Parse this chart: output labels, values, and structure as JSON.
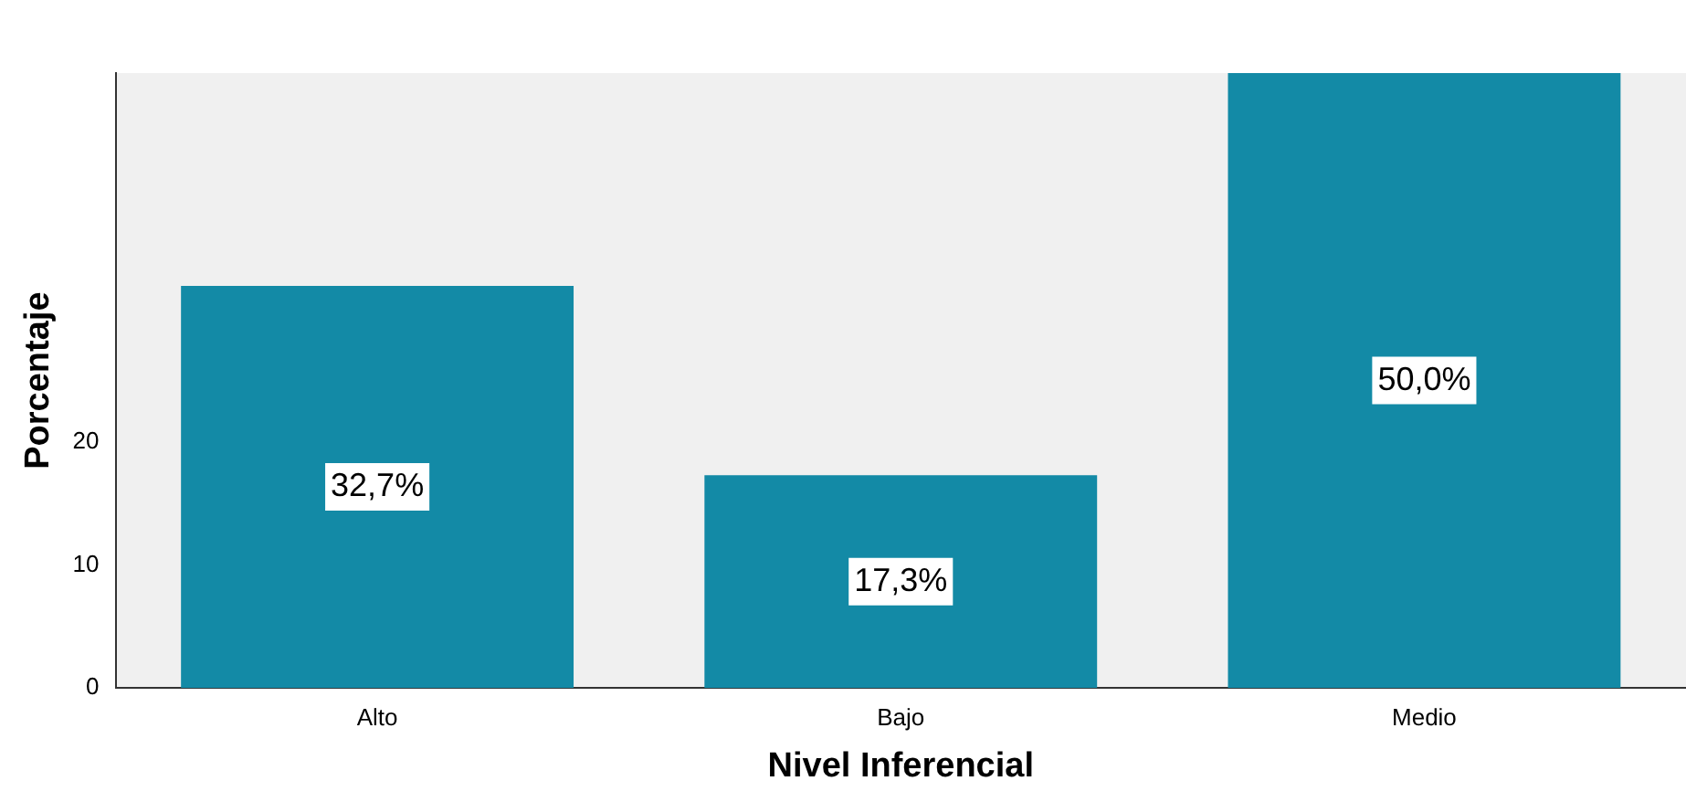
{
  "chart_data": {
    "type": "bar",
    "xlabel": "Nivel Inferencial",
    "ylabel": "Porcentaje",
    "categories": [
      "Alto",
      "Bajo",
      "Medio"
    ],
    "values": [
      32.7,
      17.3,
      50.0
    ],
    "value_labels": [
      "32,7%",
      "17,3%",
      "50,0%"
    ],
    "color": "#138aa6",
    "ylim": [
      0,
      50
    ],
    "yticks": [
      0,
      10,
      20
    ],
    "grid": false,
    "legend": false
  }
}
